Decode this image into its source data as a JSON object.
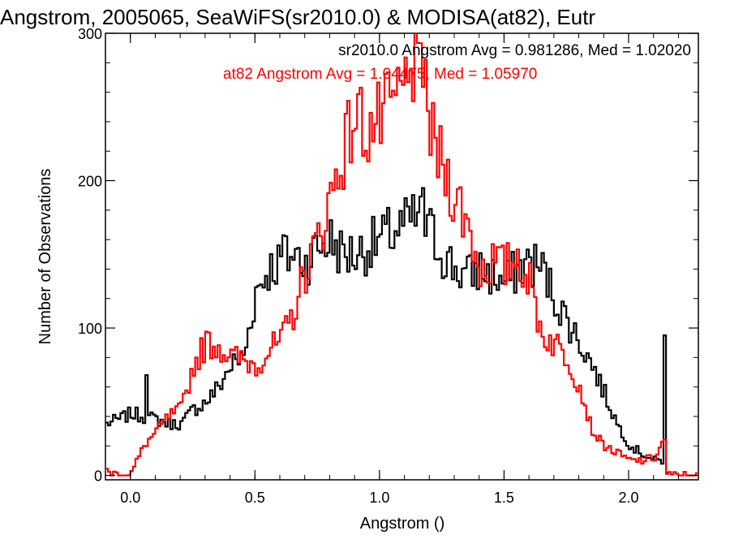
{
  "chart_data": {
    "type": "line",
    "title": "Angstrom, 2005065, SeaWiFS(sr2010.0) & MODISA(at82), Eutr",
    "xlabel": "Angstrom ()",
    "ylabel": "Number of Observations",
    "xlim": [
      -0.1,
      2.28
    ],
    "ylim": [
      -3,
      300
    ],
    "x_ticks": [
      0.0,
      0.5,
      1.0,
      1.5,
      2.0
    ],
    "x_tick_labels": [
      "0.0",
      "0.5",
      "1.0",
      "1.5",
      "2.0"
    ],
    "y_ticks": [
      0,
      100,
      200,
      300
    ],
    "y_tick_labels": [
      "0",
      "100",
      "200",
      "300"
    ],
    "grid": false,
    "legend_position": "top-right",
    "annotations": [
      {
        "text": "sr2010.0 Angstrom Avg = 0.981286, Med = 1.02020",
        "color": "#000000"
      },
      {
        "text": "at82 Angstrom Avg = 1.04475, Med = 1.05970",
        "color": "#ff0000"
      }
    ],
    "series": [
      {
        "color": "#000000",
        "x": [
          -0.1,
          -0.05,
          0.0,
          0.05,
          0.1,
          0.15,
          0.2,
          0.25,
          0.3,
          0.35,
          0.4,
          0.45,
          0.5,
          0.55,
          0.6,
          0.65,
          0.7,
          0.75,
          0.8,
          0.85,
          0.9,
          0.95,
          1.0,
          1.05,
          1.1,
          1.15,
          1.2,
          1.25,
          1.3,
          1.35,
          1.4,
          1.45,
          1.5,
          1.55,
          1.6,
          1.65,
          1.7,
          1.75,
          1.8,
          1.85,
          1.9,
          1.95,
          2.0,
          2.05,
          2.1,
          2.14,
          2.15
        ],
        "y": [
          35,
          38,
          42,
          40,
          38,
          35,
          35,
          45,
          50,
          60,
          75,
          80,
          125,
          140,
          145,
          150,
          145,
          155,
          160,
          150,
          150,
          155,
          160,
          165,
          170,
          175,
          165,
          150,
          140,
          135,
          140,
          135,
          130,
          140,
          145,
          140,
          120,
          105,
          90,
          75,
          55,
          35,
          20,
          15,
          10,
          10,
          0
        ],
        "spikes": [
          {
            "x": 0.06,
            "y": 68
          },
          {
            "x": 0.61,
            "y": 163
          },
          {
            "x": 1.17,
            "y": 195
          },
          {
            "x": 2.14,
            "y": 95
          }
        ]
      },
      {
        "color": "#ff0000",
        "x": [
          -0.1,
          -0.05,
          0.0,
          0.05,
          0.1,
          0.15,
          0.2,
          0.25,
          0.3,
          0.35,
          0.4,
          0.45,
          0.5,
          0.55,
          0.6,
          0.65,
          0.7,
          0.75,
          0.8,
          0.85,
          0.9,
          0.95,
          1.0,
          1.05,
          1.1,
          1.15,
          1.2,
          1.25,
          1.3,
          1.35,
          1.4,
          1.45,
          1.5,
          1.55,
          1.6,
          1.65,
          1.7,
          1.75,
          1.8,
          1.85,
          1.9,
          1.95,
          2.0,
          2.05,
          2.1,
          2.14,
          2.15,
          2.28
        ],
        "y": [
          3,
          0,
          2,
          20,
          30,
          40,
          45,
          75,
          90,
          88,
          80,
          78,
          75,
          85,
          90,
          110,
          140,
          160,
          190,
          220,
          245,
          235,
          240,
          250,
          265,
          270,
          230,
          210,
          190,
          170,
          140,
          145,
          140,
          150,
          130,
          95,
          90,
          80,
          60,
          30,
          20,
          15,
          10,
          10,
          12,
          25,
          0,
          0
        ],
        "spikes": [
          {
            "x": 1.18,
            "y": 282
          },
          {
            "x": 1.12,
            "y": 275
          }
        ]
      }
    ]
  }
}
